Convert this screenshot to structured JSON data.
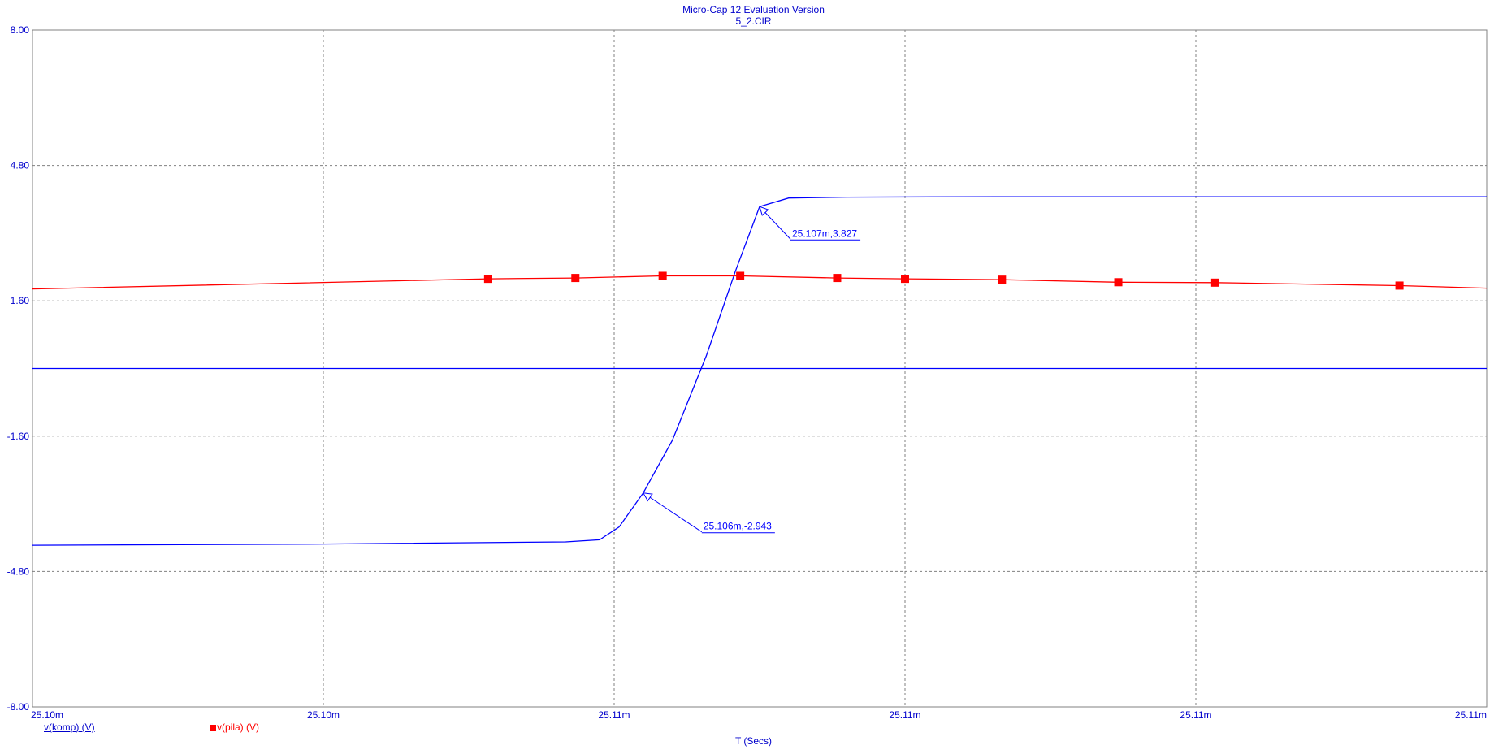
{
  "header": {
    "title": "Micro-Cap 12 Evaluation Version",
    "subtitle": "5_2.CIR"
  },
  "legend": {
    "komp": "v(komp) (V)",
    "pila": "v(pila) (V)"
  },
  "colors": {
    "komp": "#0000ff",
    "pila": "#ff0000",
    "axis_text": "#0000cc",
    "grid": "#808080"
  },
  "chart_data": {
    "type": "line",
    "title": "Micro-Cap 12 Evaluation Version",
    "subtitle": "5_2.CIR",
    "xlabel": "T (Secs)",
    "ylabel": "",
    "x_unit": "ms",
    "xlim": [
      25.1,
      25.115
    ],
    "ylim": [
      -8.0,
      8.0
    ],
    "x_tick_labels": [
      "25.10m",
      "25.10m",
      "25.11m",
      "25.11m",
      "25.11m",
      "25.11m"
    ],
    "y_tick_labels": [
      "8.00",
      "4.80",
      "1.60",
      "-1.60",
      "-4.80",
      "-8.00"
    ],
    "y_ticks": [
      8.0,
      4.8,
      1.6,
      -1.6,
      -4.8,
      -8.0
    ],
    "grid": true,
    "legend_position": "bottom-left",
    "series": [
      {
        "name": "v(komp) (V)",
        "color": "#0000ff",
        "marker": "none",
        "x": [
          25.1,
          25.103,
          25.1055,
          25.10585,
          25.10605,
          25.1063,
          25.1066,
          25.10695,
          25.10725,
          25.1075,
          25.1078,
          25.1084,
          25.11,
          25.112,
          25.115
        ],
        "y": [
          -4.18,
          -4.15,
          -4.1,
          -4.05,
          -3.75,
          -2.943,
          -1.7,
          0.3,
          2.3,
          3.827,
          4.03,
          4.05,
          4.06,
          4.06,
          4.06
        ]
      },
      {
        "name": "v(pila) (V)",
        "color": "#ff0000",
        "marker": "square",
        "x": [
          25.1,
          25.1047,
          25.1056,
          25.1065,
          25.1073,
          25.1083,
          25.109,
          25.11,
          25.1112,
          25.1122,
          25.1141,
          25.115
        ],
        "y": [
          1.88,
          2.12,
          2.14,
          2.19,
          2.19,
          2.14,
          2.12,
          2.1,
          2.04,
          2.03,
          1.96,
          1.9
        ]
      },
      {
        "name": "",
        "color": "#0000ff",
        "marker": "none",
        "x": [
          25.1,
          25.115
        ],
        "y": [
          0.0,
          0.0
        ]
      }
    ],
    "markers": {
      "pila": {
        "x": [
          25.1047,
          25.1056,
          25.1065,
          25.1073,
          25.1083,
          25.109,
          25.11,
          25.1112,
          25.1122,
          25.1141
        ],
        "y": [
          2.12,
          2.14,
          2.19,
          2.19,
          2.14,
          2.12,
          2.1,
          2.04,
          2.03,
          1.96
        ]
      }
    },
    "annotations": [
      {
        "label": "25.107m,3.827",
        "x": 25.1075,
        "y": 3.827
      },
      {
        "label": "25.106m,-2.943",
        "x": 25.1063,
        "y": -2.943
      }
    ]
  }
}
